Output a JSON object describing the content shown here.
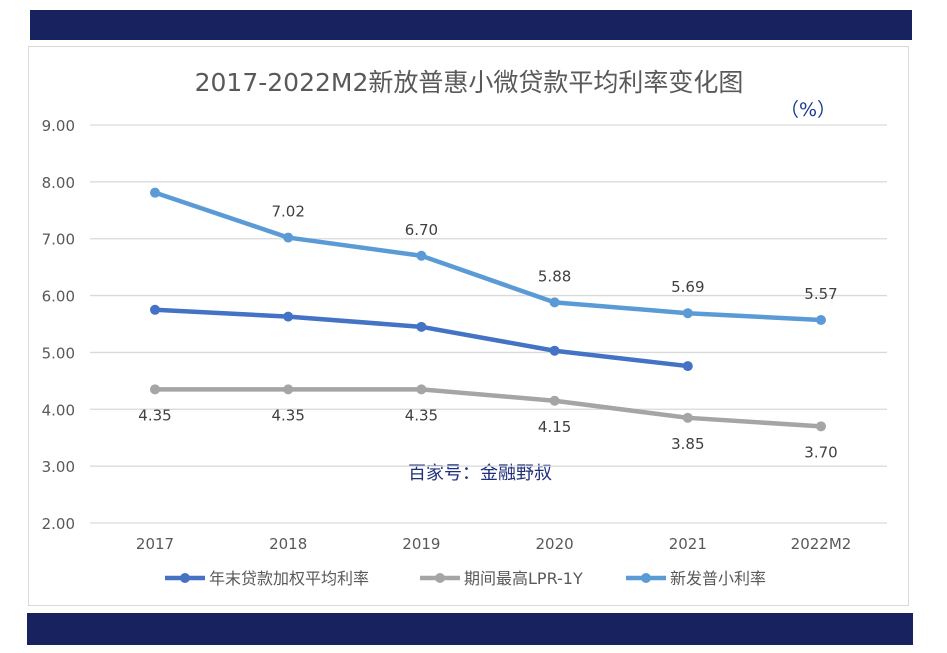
{
  "chart_data": {
    "type": "line",
    "title": "2017-2022M2新放普惠小微贷款平均利率变化图",
    "unit": "（%）",
    "categories": [
      "2017",
      "2018",
      "2019",
      "2020",
      "2021",
      "2022M2"
    ],
    "ylim": [
      2,
      9
    ],
    "yticks": [
      "2.00",
      "3.00",
      "4.00",
      "5.00",
      "6.00",
      "7.00",
      "8.00",
      "9.00"
    ],
    "grid": true,
    "legend": "bottom",
    "watermark": "百家号：金融野叔",
    "series": [
      {
        "name": "年末贷款加权平均利率",
        "color": "#4472c4",
        "values": [
          5.75,
          5.63,
          5.45,
          5.03,
          4.76,
          null
        ],
        "labels": [
          null,
          null,
          null,
          null,
          null,
          null
        ],
        "label_pos": "above"
      },
      {
        "name": "期间最高LPR-1Y",
        "color": "#a5a5a5",
        "values": [
          4.35,
          4.35,
          4.35,
          4.15,
          3.85,
          3.7
        ],
        "labels": [
          "4.35",
          "4.35",
          "4.35",
          "4.15",
          "3.85",
          "3.70"
        ],
        "label_pos": "below"
      },
      {
        "name": "新发普小利率",
        "color": "#5b9bd5",
        "values": [
          7.81,
          7.02,
          6.7,
          5.88,
          5.69,
          5.57
        ],
        "labels": [
          null,
          "7.02",
          "6.70",
          "5.88",
          "5.69",
          "5.57"
        ],
        "label_pos": "above"
      }
    ]
  }
}
